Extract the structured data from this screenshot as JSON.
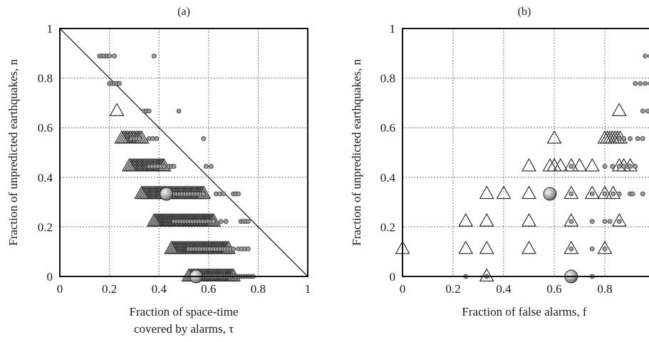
{
  "chart_data": [
    {
      "type": "scatter",
      "panel_label": "(a)",
      "xlabel_line1": "Fraction of space-time",
      "xlabel_line2": "covered by alarms, τ",
      "ylabel": "Fraction of unpredicted earthquakes, n",
      "xlim": [
        0,
        1
      ],
      "ylim": [
        0,
        1
      ],
      "xticks": [
        "0",
        "0.2",
        "0.4",
        "0.6",
        "0.8",
        "1"
      ],
      "yticks": [
        "0",
        "0.2",
        "0.4",
        "0.6",
        "0.8",
        "1"
      ],
      "grid": true,
      "diagonal_line": true,
      "series": [
        {
          "marker": "triangle",
          "clusters": [
            {
              "y": 0.667,
              "x_from": 0.23,
              "x_to": 0.23,
              "count": 1
            },
            {
              "y": 0.556,
              "x_from": 0.25,
              "x_to": 0.33,
              "count": 12
            },
            {
              "y": 0.444,
              "x_from": 0.28,
              "x_to": 0.42,
              "count": 22
            },
            {
              "y": 0.333,
              "x_from": 0.33,
              "x_to": 0.58,
              "count": 40
            },
            {
              "y": 0.222,
              "x_from": 0.38,
              "x_to": 0.62,
              "count": 40
            },
            {
              "y": 0.111,
              "x_from": 0.45,
              "x_to": 0.68,
              "count": 38
            },
            {
              "y": 0.0,
              "x_from": 0.52,
              "x_to": 0.7,
              "count": 30
            }
          ]
        },
        {
          "marker": "small-circle",
          "clusters": [
            {
              "y": 0.889,
              "x_from": 0.16,
              "x_to": 0.2,
              "count": 5
            },
            {
              "y": 0.889,
              "x_from": 0.22,
              "x_to": 0.22,
              "count": 1
            },
            {
              "y": 0.889,
              "x_from": 0.38,
              "x_to": 0.38,
              "count": 1
            },
            {
              "y": 0.778,
              "x_from": 0.2,
              "x_to": 0.24,
              "count": 5
            },
            {
              "y": 0.667,
              "x_from": 0.34,
              "x_to": 0.36,
              "count": 3
            },
            {
              "y": 0.667,
              "x_from": 0.48,
              "x_to": 0.48,
              "count": 1
            },
            {
              "y": 0.556,
              "x_from": 0.36,
              "x_to": 0.39,
              "count": 3
            },
            {
              "y": 0.556,
              "x_from": 0.29,
              "x_to": 0.32,
              "count": 4
            },
            {
              "y": 0.556,
              "x_from": 0.58,
              "x_to": 0.58,
              "count": 1
            },
            {
              "y": 0.444,
              "x_from": 0.36,
              "x_to": 0.42,
              "count": 6
            },
            {
              "y": 0.444,
              "x_from": 0.44,
              "x_to": 0.46,
              "count": 3
            },
            {
              "y": 0.444,
              "x_from": 0.59,
              "x_to": 0.61,
              "count": 2
            },
            {
              "y": 0.333,
              "x_from": 0.44,
              "x_to": 0.58,
              "count": 14
            },
            {
              "y": 0.333,
              "x_from": 0.63,
              "x_to": 0.66,
              "count": 3
            },
            {
              "y": 0.333,
              "x_from": 0.7,
              "x_to": 0.72,
              "count": 3
            },
            {
              "y": 0.222,
              "x_from": 0.46,
              "x_to": 0.62,
              "count": 16
            },
            {
              "y": 0.222,
              "x_from": 0.65,
              "x_to": 0.67,
              "count": 2
            },
            {
              "y": 0.222,
              "x_from": 0.73,
              "x_to": 0.76,
              "count": 4
            },
            {
              "y": 0.111,
              "x_from": 0.52,
              "x_to": 0.7,
              "count": 18
            },
            {
              "y": 0.111,
              "x_from": 0.72,
              "x_to": 0.76,
              "count": 4
            },
            {
              "y": 0.0,
              "x_from": 0.58,
              "x_to": 0.78,
              "count": 22
            }
          ]
        },
        {
          "marker": "large-circle",
          "points": [
            {
              "x": 0.43,
              "y": 0.333
            },
            {
              "x": 0.55,
              "y": 0.0
            }
          ]
        }
      ]
    },
    {
      "type": "scatter",
      "panel_label": "(b)",
      "xlabel": "Fraction of false alarms, f",
      "ylabel": "Fraction of unpredicted earthquakes, n",
      "xlim": [
        0,
        1
      ],
      "ylim": [
        0,
        1
      ],
      "xticks": [
        "0",
        "0.2",
        "0.4",
        "0.6",
        "0.8"
      ],
      "yticks": [
        "0",
        "0.2",
        "0.4",
        "0.6",
        "0.8",
        "1"
      ],
      "grid": true,
      "series": [
        {
          "marker": "triangle",
          "points": [
            {
              "x": 0.0,
              "y": 0.111
            },
            {
              "x": 0.25,
              "y": 0.111
            },
            {
              "x": 0.333,
              "y": 0.111
            },
            {
              "x": 0.5,
              "y": 0.111
            },
            {
              "x": 0.667,
              "y": 0.111
            },
            {
              "x": 0.8,
              "y": 0.111
            },
            {
              "x": 0.25,
              "y": 0.222
            },
            {
              "x": 0.333,
              "y": 0.222
            },
            {
              "x": 0.5,
              "y": 0.222
            },
            {
              "x": 0.667,
              "y": 0.222
            },
            {
              "x": 0.857,
              "y": 0.222
            },
            {
              "x": 0.333,
              "y": 0.333
            },
            {
              "x": 0.4,
              "y": 0.333
            },
            {
              "x": 0.5,
              "y": 0.333
            },
            {
              "x": 0.667,
              "y": 0.333
            },
            {
              "x": 0.75,
              "y": 0.333
            },
            {
              "x": 0.8,
              "y": 0.333
            },
            {
              "x": 0.833,
              "y": 0.333
            },
            {
              "x": 0.5,
              "y": 0.444
            },
            {
              "x": 0.583,
              "y": 0.444
            },
            {
              "x": 0.6,
              "y": 0.444
            },
            {
              "x": 0.625,
              "y": 0.444
            },
            {
              "x": 0.667,
              "y": 0.444
            },
            {
              "x": 0.7,
              "y": 0.444
            },
            {
              "x": 0.75,
              "y": 0.444
            },
            {
              "x": 0.857,
              "y": 0.444
            },
            {
              "x": 0.875,
              "y": 0.444
            },
            {
              "x": 0.9,
              "y": 0.444
            },
            {
              "x": 0.6,
              "y": 0.556
            },
            {
              "x": 0.8,
              "y": 0.556
            },
            {
              "x": 0.81,
              "y": 0.556
            },
            {
              "x": 0.82,
              "y": 0.556
            },
            {
              "x": 0.83,
              "y": 0.556
            },
            {
              "x": 0.84,
              "y": 0.556
            },
            {
              "x": 0.85,
              "y": 0.556
            },
            {
              "x": 0.86,
              "y": 0.556
            },
            {
              "x": 0.857,
              "y": 0.667
            },
            {
              "x": 0.333,
              "y": 0.0
            }
          ]
        },
        {
          "marker": "small-circle",
          "points": [
            {
              "x": 0.25,
              "y": 0.0
            },
            {
              "x": 0.333,
              "y": 0.0
            },
            {
              "x": 0.75,
              "y": 0.0
            },
            {
              "x": 0.667,
              "y": 0.111
            },
            {
              "x": 0.75,
              "y": 0.111
            },
            {
              "x": 0.8,
              "y": 0.111
            },
            {
              "x": 0.667,
              "y": 0.222
            },
            {
              "x": 0.75,
              "y": 0.222
            },
            {
              "x": 0.8,
              "y": 0.222
            },
            {
              "x": 0.82,
              "y": 0.222
            },
            {
              "x": 0.857,
              "y": 0.222
            },
            {
              "x": 0.667,
              "y": 0.333
            },
            {
              "x": 0.75,
              "y": 0.333
            },
            {
              "x": 0.8,
              "y": 0.333
            },
            {
              "x": 0.833,
              "y": 0.333
            },
            {
              "x": 0.857,
              "y": 0.333
            },
            {
              "x": 0.9,
              "y": 0.333
            },
            {
              "x": 0.91,
              "y": 0.333
            },
            {
              "x": 0.95,
              "y": 0.333
            },
            {
              "x": 0.667,
              "y": 0.444
            },
            {
              "x": 0.8,
              "y": 0.444
            },
            {
              "x": 0.83,
              "y": 0.444
            },
            {
              "x": 0.857,
              "y": 0.444
            },
            {
              "x": 0.875,
              "y": 0.444
            },
            {
              "x": 0.889,
              "y": 0.444
            },
            {
              "x": 0.9,
              "y": 0.444
            },
            {
              "x": 0.92,
              "y": 0.444
            },
            {
              "x": 0.857,
              "y": 0.556
            },
            {
              "x": 0.875,
              "y": 0.556
            },
            {
              "x": 0.9,
              "y": 0.556
            },
            {
              "x": 0.93,
              "y": 0.556
            },
            {
              "x": 0.95,
              "y": 0.556
            },
            {
              "x": 0.92,
              "y": 0.778
            },
            {
              "x": 0.94,
              "y": 0.778
            },
            {
              "x": 0.96,
              "y": 0.778
            },
            {
              "x": 0.98,
              "y": 0.778
            },
            {
              "x": 0.95,
              "y": 0.667
            },
            {
              "x": 0.97,
              "y": 0.667
            },
            {
              "x": 0.96,
              "y": 0.889
            },
            {
              "x": 0.98,
              "y": 0.889
            },
            {
              "x": 1.0,
              "y": 0.889
            }
          ]
        },
        {
          "marker": "large-circle",
          "points": [
            {
              "x": 0.583,
              "y": 0.333
            },
            {
              "x": 0.667,
              "y": 0.0
            }
          ]
        }
      ]
    }
  ]
}
